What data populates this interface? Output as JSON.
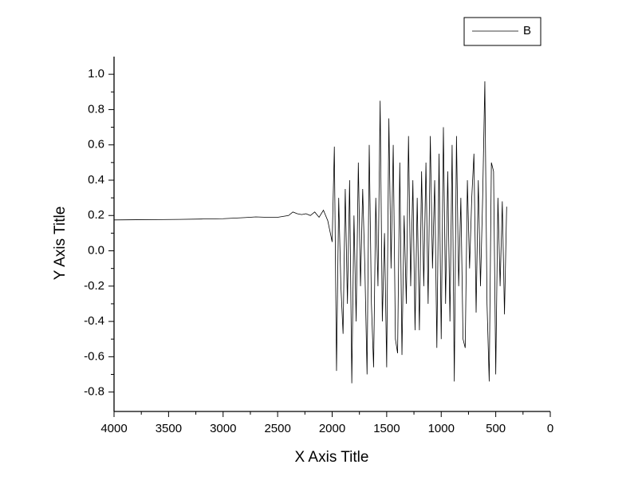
{
  "chart_data": {
    "type": "line",
    "x_label": "X Axis Title",
    "y_label": "Y Axis Title",
    "x": [
      4000,
      3800,
      3600,
      3400,
      3200,
      3000,
      2800,
      2700,
      2600,
      2500,
      2400,
      2360,
      2320,
      2280,
      2240,
      2200,
      2160,
      2120,
      2080,
      2040,
      2000,
      1980,
      1960,
      1940,
      1920,
      1900,
      1880,
      1860,
      1840,
      1820,
      1800,
      1780,
      1760,
      1740,
      1720,
      1700,
      1680,
      1660,
      1640,
      1620,
      1600,
      1580,
      1560,
      1540,
      1520,
      1500,
      1480,
      1460,
      1440,
      1420,
      1400,
      1380,
      1360,
      1340,
      1320,
      1300,
      1280,
      1260,
      1240,
      1220,
      1200,
      1180,
      1160,
      1140,
      1120,
      1100,
      1080,
      1060,
      1040,
      1020,
      1000,
      980,
      960,
      940,
      920,
      900,
      880,
      860,
      840,
      820,
      800,
      780,
      760,
      740,
      720,
      700,
      680,
      660,
      640,
      620,
      600,
      580,
      560,
      540,
      520,
      500,
      480,
      460,
      440,
      420,
      400
    ],
    "series": [
      {
        "name": "B",
        "color": "#000000",
        "values": [
          0.175,
          0.176,
          0.177,
          0.178,
          0.18,
          0.182,
          0.188,
          0.192,
          0.19,
          0.19,
          0.2,
          0.22,
          0.21,
          0.205,
          0.21,
          0.2,
          0.22,
          0.19,
          0.23,
          0.17,
          0.05,
          0.59,
          -0.68,
          0.3,
          -0.2,
          -0.47,
          0.35,
          -0.3,
          0.4,
          -0.75,
          0.2,
          -0.4,
          0.5,
          -0.2,
          0.35,
          -0.1,
          -0.7,
          0.6,
          -0.3,
          -0.66,
          0.3,
          -0.2,
          0.85,
          -0.4,
          0.1,
          -0.66,
          0.75,
          -0.1,
          0.6,
          -0.5,
          -0.58,
          0.5,
          -0.59,
          0.2,
          -0.3,
          0.65,
          -0.2,
          0.4,
          -0.45,
          0.3,
          -0.45,
          0.45,
          -0.2,
          0.5,
          -0.3,
          0.65,
          -0.1,
          0.4,
          -0.55,
          0.55,
          -0.5,
          0.7,
          -0.3,
          0.45,
          -0.4,
          0.6,
          -0.74,
          0.65,
          -0.2,
          0.3,
          -0.5,
          -0.55,
          0.4,
          -0.1,
          0.3,
          0.55,
          -0.35,
          0.4,
          -0.2,
          0.3,
          0.96,
          -0.3,
          -0.74,
          0.5,
          0.45,
          -0.7,
          0.3,
          -0.2,
          0.28,
          -0.36,
          0.25
        ]
      }
    ],
    "xlim": [
      4000,
      0
    ],
    "xticks": [
      4000,
      3500,
      3000,
      2500,
      2000,
      1500,
      1000,
      500,
      0
    ],
    "ylim": [
      -0.91,
      1.1
    ],
    "yticks": [
      -0.8,
      -0.6,
      -0.4,
      -0.2,
      {
        "value": 0,
        "label": "0.0"
      },
      0.2,
      0.4,
      0.6,
      0.8,
      {
        "value": 1,
        "label": "1.0"
      }
    ],
    "legend": "top-right"
  }
}
